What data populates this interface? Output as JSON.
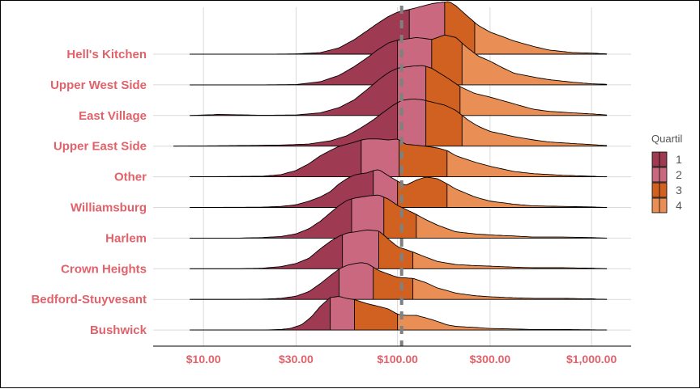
{
  "chart_data": {
    "type": "ridgeline",
    "x_scale": "log10",
    "xlim": [
      5.5,
      1600
    ],
    "x_ticks": [
      10,
      30,
      100,
      300,
      1000
    ],
    "x_tick_labels": [
      "$10.00",
      "$30.00",
      "$100.00",
      "$300.00",
      "$1,000.00"
    ],
    "reference_line": 105,
    "legend": {
      "title": "Quartil",
      "position": "right",
      "labels": [
        "1",
        "2",
        "3",
        "4"
      ]
    },
    "quartile_colors": [
      "#9E3A52",
      "#C9687E",
      "#D06120",
      "#E98F55"
    ],
    "categories": [
      "Hell's Kitchen",
      "Upper West Side",
      "East Village",
      "Upper East Side",
      "Other",
      "Williamsburg",
      "Harlem",
      "Crown Heights",
      "Bedford-Stuyvesant",
      "Bushwick"
    ],
    "series": [
      {
        "category": "Hell's Kitchen",
        "range": [
          8.5,
          1200
        ],
        "quartiles": [
          115,
          175,
          250
        ],
        "density": [
          [
            8.5,
            0
          ],
          [
            20,
            0
          ],
          [
            30,
            0.005
          ],
          [
            40,
            0.03
          ],
          [
            50,
            0.12
          ],
          [
            60,
            0.28
          ],
          [
            70,
            0.45
          ],
          [
            80,
            0.6
          ],
          [
            90,
            0.72
          ],
          [
            100,
            0.8
          ],
          [
            115,
            0.85
          ],
          [
            130,
            0.9
          ],
          [
            150,
            0.96
          ],
          [
            170,
            0.99
          ],
          [
            185,
            1.0
          ],
          [
            200,
            0.92
          ],
          [
            230,
            0.72
          ],
          [
            260,
            0.55
          ],
          [
            300,
            0.42
          ],
          [
            350,
            0.33
          ],
          [
            400,
            0.25
          ],
          [
            500,
            0.15
          ],
          [
            600,
            0.08
          ],
          [
            800,
            0.03
          ],
          [
            1000,
            0.02
          ],
          [
            1200,
            0.005
          ]
        ]
      },
      {
        "category": "Upper West Side",
        "range": [
          8.5,
          1200
        ],
        "quartiles": [
          100,
          150,
          215
        ],
        "density": [
          [
            8.5,
            0
          ],
          [
            20,
            0
          ],
          [
            30,
            0.005
          ],
          [
            40,
            0.06
          ],
          [
            50,
            0.18
          ],
          [
            60,
            0.35
          ],
          [
            70,
            0.52
          ],
          [
            80,
            0.68
          ],
          [
            90,
            0.8
          ],
          [
            100,
            0.85
          ],
          [
            110,
            0.87
          ],
          [
            125,
            0.9
          ],
          [
            140,
            0.88
          ],
          [
            150,
            0.86
          ],
          [
            175,
            0.95
          ],
          [
            200,
            0.9
          ],
          [
            230,
            0.7
          ],
          [
            260,
            0.55
          ],
          [
            300,
            0.45
          ],
          [
            350,
            0.32
          ],
          [
            400,
            0.22
          ],
          [
            500,
            0.15
          ],
          [
            600,
            0.1
          ],
          [
            800,
            0.05
          ],
          [
            1000,
            0.02
          ],
          [
            1200,
            0.01
          ]
        ]
      },
      {
        "category": "East Village",
        "range": [
          8.5,
          1200
        ],
        "quartiles": [
          100,
          140,
          210
        ],
        "density": [
          [
            8.5,
            0
          ],
          [
            12,
            0.02
          ],
          [
            20,
            0.005
          ],
          [
            30,
            0.01
          ],
          [
            40,
            0.05
          ],
          [
            50,
            0.15
          ],
          [
            60,
            0.3
          ],
          [
            70,
            0.5
          ],
          [
            80,
            0.68
          ],
          [
            90,
            0.82
          ],
          [
            100,
            0.9
          ],
          [
            120,
            0.94
          ],
          [
            135,
            0.95
          ],
          [
            150,
            0.9
          ],
          [
            180,
            0.72
          ],
          [
            210,
            0.55
          ],
          [
            250,
            0.42
          ],
          [
            300,
            0.35
          ],
          [
            400,
            0.22
          ],
          [
            500,
            0.12
          ],
          [
            600,
            0.08
          ],
          [
            800,
            0.05
          ],
          [
            1000,
            0.03
          ],
          [
            1200,
            0.01
          ]
        ]
      },
      {
        "category": "Upper East Side",
        "range": [
          7,
          1200
        ],
        "quartiles": [
          100,
          140,
          215
        ],
        "density": [
          [
            7,
            0
          ],
          [
            15,
            0.01
          ],
          [
            25,
            0.02
          ],
          [
            35,
            0.04
          ],
          [
            45,
            0.1
          ],
          [
            55,
            0.2
          ],
          [
            65,
            0.35
          ],
          [
            75,
            0.5
          ],
          [
            85,
            0.65
          ],
          [
            95,
            0.78
          ],
          [
            105,
            0.87
          ],
          [
            120,
            0.9
          ],
          [
            135,
            0.88
          ],
          [
            150,
            0.84
          ],
          [
            175,
            0.78
          ],
          [
            200,
            0.68
          ],
          [
            230,
            0.5
          ],
          [
            260,
            0.38
          ],
          [
            300,
            0.28
          ],
          [
            400,
            0.18
          ],
          [
            500,
            0.12
          ],
          [
            600,
            0.08
          ],
          [
            800,
            0.05
          ],
          [
            1000,
            0.03
          ],
          [
            1200,
            0.01
          ]
        ]
      },
      {
        "category": "Other",
        "range": [
          8.5,
          1200
        ],
        "quartiles": [
          65,
          102,
          180
        ],
        "density": [
          [
            8.5,
            0
          ],
          [
            20,
            0.01
          ],
          [
            25,
            0.04
          ],
          [
            30,
            0.12
          ],
          [
            35,
            0.25
          ],
          [
            40,
            0.4
          ],
          [
            45,
            0.5
          ],
          [
            50,
            0.58
          ],
          [
            55,
            0.62
          ],
          [
            60,
            0.66
          ],
          [
            65,
            0.7
          ],
          [
            70,
            0.72
          ],
          [
            80,
            0.72
          ],
          [
            90,
            0.7
          ],
          [
            100,
            0.72
          ],
          [
            110,
            0.62
          ],
          [
            125,
            0.6
          ],
          [
            140,
            0.58
          ],
          [
            160,
            0.55
          ],
          [
            180,
            0.5
          ],
          [
            200,
            0.4
          ],
          [
            250,
            0.28
          ],
          [
            300,
            0.2
          ],
          [
            400,
            0.1
          ],
          [
            500,
            0.06
          ],
          [
            700,
            0.03
          ],
          [
            1000,
            0.01
          ],
          [
            1200,
            0
          ]
        ]
      },
      {
        "category": "Williamsburg",
        "range": [
          8.5,
          1200
        ],
        "quartiles": [
          75,
          100,
          180
        ],
        "density": [
          [
            8.5,
            0
          ],
          [
            20,
            0.005
          ],
          [
            25,
            0.02
          ],
          [
            30,
            0.05
          ],
          [
            35,
            0.12
          ],
          [
            40,
            0.2
          ],
          [
            45,
            0.3
          ],
          [
            50,
            0.45
          ],
          [
            55,
            0.55
          ],
          [
            60,
            0.62
          ],
          [
            70,
            0.66
          ],
          [
            75,
            0.7
          ],
          [
            80,
            0.72
          ],
          [
            90,
            0.6
          ],
          [
            100,
            0.5
          ],
          [
            110,
            0.42
          ],
          [
            125,
            0.52
          ],
          [
            140,
            0.58
          ],
          [
            160,
            0.55
          ],
          [
            180,
            0.45
          ],
          [
            200,
            0.35
          ],
          [
            250,
            0.2
          ],
          [
            300,
            0.12
          ],
          [
            400,
            0.06
          ],
          [
            500,
            0.03
          ],
          [
            700,
            0.02
          ],
          [
            1000,
            0.01
          ],
          [
            1200,
            0
          ]
        ]
      },
      {
        "category": "Harlem",
        "range": [
          8.5,
          1200
        ],
        "quartiles": [
          58,
          85,
          125
        ],
        "density": [
          [
            8.5,
            0
          ],
          [
            15,
            0
          ],
          [
            20,
            0.01
          ],
          [
            25,
            0.03
          ],
          [
            30,
            0.08
          ],
          [
            35,
            0.18
          ],
          [
            40,
            0.32
          ],
          [
            45,
            0.48
          ],
          [
            50,
            0.62
          ],
          [
            55,
            0.72
          ],
          [
            60,
            0.76
          ],
          [
            70,
            0.8
          ],
          [
            80,
            0.82
          ],
          [
            90,
            0.74
          ],
          [
            100,
            0.62
          ],
          [
            110,
            0.55
          ],
          [
            125,
            0.45
          ],
          [
            140,
            0.35
          ],
          [
            160,
            0.25
          ],
          [
            180,
            0.18
          ],
          [
            200,
            0.12
          ],
          [
            250,
            0.08
          ],
          [
            300,
            0.06
          ],
          [
            400,
            0.04
          ],
          [
            500,
            0.02
          ],
          [
            700,
            0.02
          ],
          [
            1000,
            0.01
          ],
          [
            1200,
            0
          ]
        ]
      },
      {
        "category": "Crown Heights",
        "range": [
          8.5,
          1200
        ],
        "quartiles": [
          52,
          80,
          120
        ],
        "density": [
          [
            8.5,
            0
          ],
          [
            15,
            0
          ],
          [
            20,
            0.01
          ],
          [
            25,
            0.04
          ],
          [
            30,
            0.1
          ],
          [
            35,
            0.2
          ],
          [
            40,
            0.38
          ],
          [
            45,
            0.52
          ],
          [
            50,
            0.62
          ],
          [
            55,
            0.68
          ],
          [
            60,
            0.7
          ],
          [
            70,
            0.74
          ],
          [
            80,
            0.72
          ],
          [
            90,
            0.56
          ],
          [
            100,
            0.42
          ],
          [
            120,
            0.32
          ],
          [
            140,
            0.22
          ],
          [
            160,
            0.14
          ],
          [
            200,
            0.08
          ],
          [
            250,
            0.06
          ],
          [
            300,
            0.05
          ],
          [
            400,
            0.03
          ],
          [
            500,
            0.02
          ],
          [
            700,
            0.02
          ],
          [
            1000,
            0.01
          ],
          [
            1200,
            0
          ]
        ]
      },
      {
        "category": "Bedford-Stuyvesant",
        "range": [
          8.5,
          1200
        ],
        "quartiles": [
          50,
          75,
          120
        ],
        "density": [
          [
            8.5,
            0
          ],
          [
            15,
            0
          ],
          [
            20,
            0.005
          ],
          [
            25,
            0.02
          ],
          [
            30,
            0.06
          ],
          [
            35,
            0.15
          ],
          [
            40,
            0.3
          ],
          [
            45,
            0.45
          ],
          [
            50,
            0.58
          ],
          [
            55,
            0.65
          ],
          [
            60,
            0.68
          ],
          [
            65,
            0.7
          ],
          [
            70,
            0.68
          ],
          [
            80,
            0.55
          ],
          [
            90,
            0.48
          ],
          [
            100,
            0.42
          ],
          [
            120,
            0.4
          ],
          [
            140,
            0.32
          ],
          [
            160,
            0.22
          ],
          [
            200,
            0.12
          ],
          [
            250,
            0.07
          ],
          [
            300,
            0.05
          ],
          [
            400,
            0.03
          ],
          [
            500,
            0.02
          ],
          [
            700,
            0.02
          ],
          [
            1000,
            0.01
          ],
          [
            1200,
            0
          ]
        ]
      },
      {
        "category": "Bushwick",
        "range": [
          8.5,
          1200
        ],
        "quartiles": [
          45,
          60,
          100
        ],
        "density": [
          [
            8.5,
            0
          ],
          [
            15,
            0
          ],
          [
            20,
            0
          ],
          [
            25,
            0.01
          ],
          [
            28,
            0.03
          ],
          [
            32,
            0.1
          ],
          [
            36,
            0.25
          ],
          [
            40,
            0.45
          ],
          [
            45,
            0.62
          ],
          [
            50,
            0.64
          ],
          [
            55,
            0.6
          ],
          [
            60,
            0.58
          ],
          [
            70,
            0.5
          ],
          [
            80,
            0.45
          ],
          [
            90,
            0.4
          ],
          [
            100,
            0.3
          ],
          [
            110,
            0.28
          ],
          [
            125,
            0.28
          ],
          [
            150,
            0.2
          ],
          [
            180,
            0.1
          ],
          [
            200,
            0.07
          ],
          [
            250,
            0.05
          ],
          [
            300,
            0.03
          ],
          [
            400,
            0.02
          ],
          [
            500,
            0.01
          ],
          [
            700,
            0.01
          ],
          [
            1000,
            0.005
          ],
          [
            1200,
            0
          ]
        ]
      }
    ]
  }
}
